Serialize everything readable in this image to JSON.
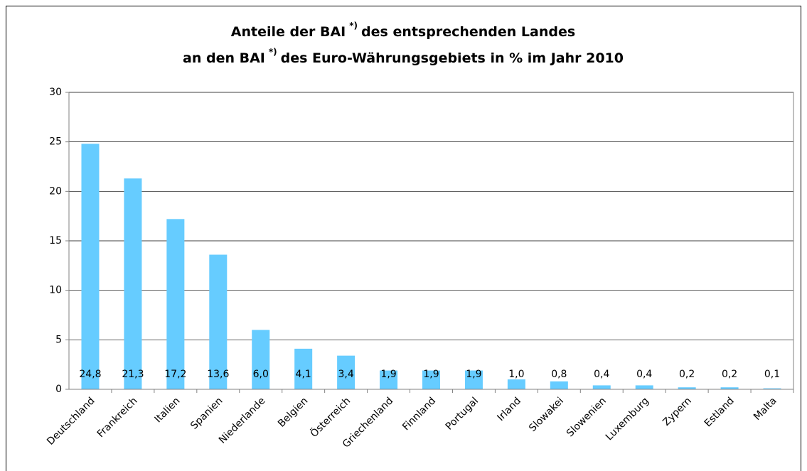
{
  "chart_data": {
    "type": "bar",
    "title_lines": [
      [
        "Anteile der BAI",
        "*)",
        "des entsprechenden Landes"
      ],
      [
        "an den BAI",
        "*)",
        "des Euro-Währungsgebiets in % im Jahr 2010"
      ]
    ],
    "categories": [
      "Deutschland",
      "Frankreich",
      "Italien",
      "Spanien",
      "Niederlande",
      "Belgien",
      "Österreich",
      "Griechenland",
      "Finnland",
      "Portugal",
      "Irland",
      "Slowakei",
      "Slowenien",
      "Luxemburg",
      "Zypern",
      "Estland",
      "Malta"
    ],
    "values": [
      24.8,
      21.3,
      17.2,
      13.6,
      6.0,
      4.1,
      3.4,
      1.9,
      1.9,
      1.9,
      1.0,
      0.8,
      0.4,
      0.4,
      0.2,
      0.2,
      0.1
    ],
    "value_labels": [
      "24,8",
      "21,3",
      "17,2",
      "13,6",
      "6,0",
      "4,1",
      "3,4",
      "1,9",
      "1,9",
      "1,9",
      "1,0",
      "0,8",
      "0,4",
      "0,4",
      "0,2",
      "0,2",
      "0,1"
    ],
    "color": "#66ccff",
    "ylim": [
      0,
      30
    ],
    "yticks": [
      0,
      5,
      10,
      15,
      20,
      25,
      30
    ],
    "grid": true
  }
}
